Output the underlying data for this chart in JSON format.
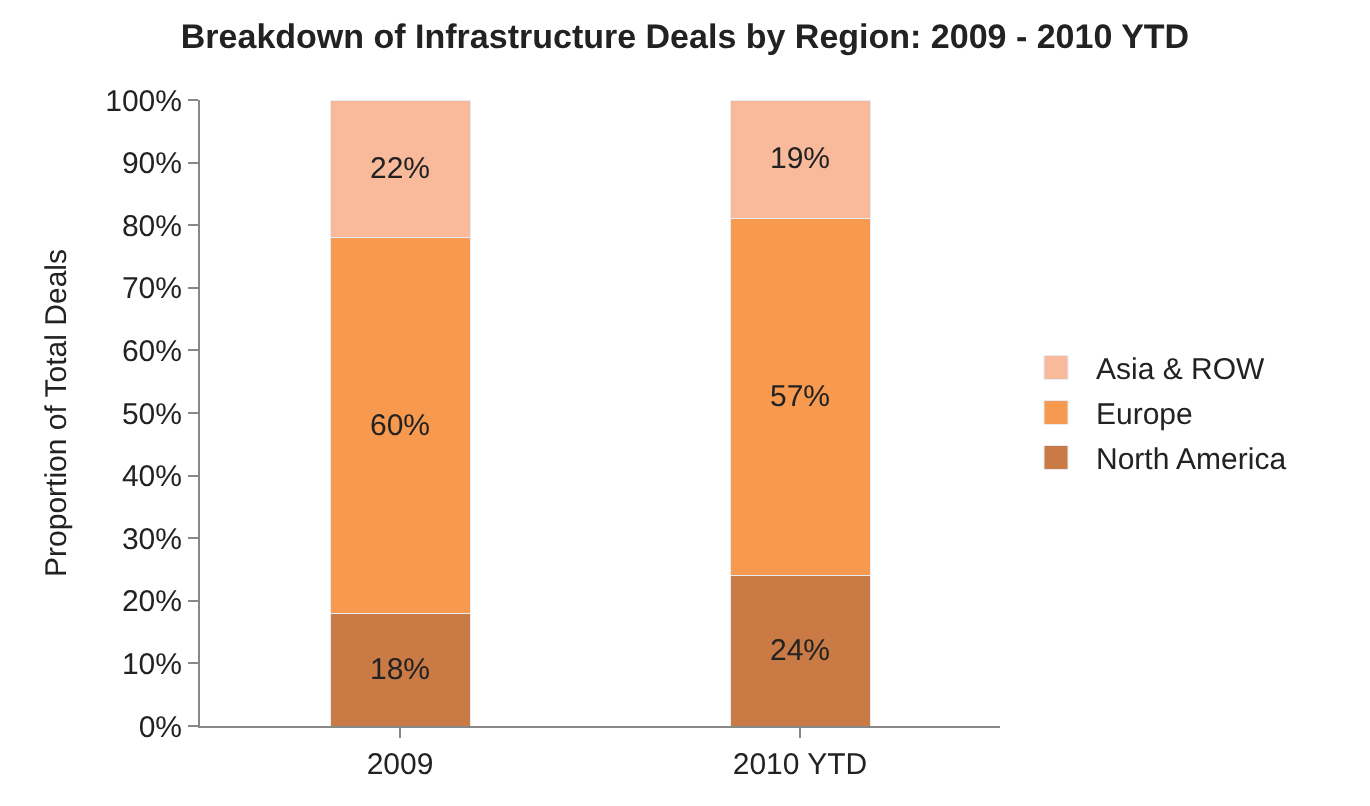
{
  "chart_data": {
    "type": "bar",
    "stacked": true,
    "title": "Breakdown of Infrastructure Deals by Region: 2009 - 2010 YTD",
    "ylabel": "Proportion of Total Deals",
    "categories": [
      "2009",
      "2010 YTD"
    ],
    "series": [
      {
        "name": "North America",
        "color": "#c97a45",
        "values": [
          18,
          24
        ],
        "value_labels": [
          "18%",
          "24%"
        ]
      },
      {
        "name": "Europe",
        "color": "#f79a4f",
        "values": [
          60,
          57
        ],
        "value_labels": [
          "60%",
          "57%"
        ]
      },
      {
        "name": "Asia & ROW",
        "color": "#f9b99b",
        "values": [
          22,
          19
        ],
        "value_labels": [
          "22%",
          "19%"
        ]
      }
    ],
    "ylim": [
      0,
      100
    ],
    "yticks": [
      {
        "value": 0,
        "label": "0%"
      },
      {
        "value": 10,
        "label": "10%"
      },
      {
        "value": 20,
        "label": "20%"
      },
      {
        "value": 30,
        "label": "30%"
      },
      {
        "value": 40,
        "label": "40%"
      },
      {
        "value": 50,
        "label": "50%"
      },
      {
        "value": 60,
        "label": "60%"
      },
      {
        "value": 70,
        "label": "70%"
      },
      {
        "value": 80,
        "label": "80%"
      },
      {
        "value": 90,
        "label": "90%"
      },
      {
        "value": 100,
        "label": "100%"
      }
    ],
    "legend": "right"
  }
}
